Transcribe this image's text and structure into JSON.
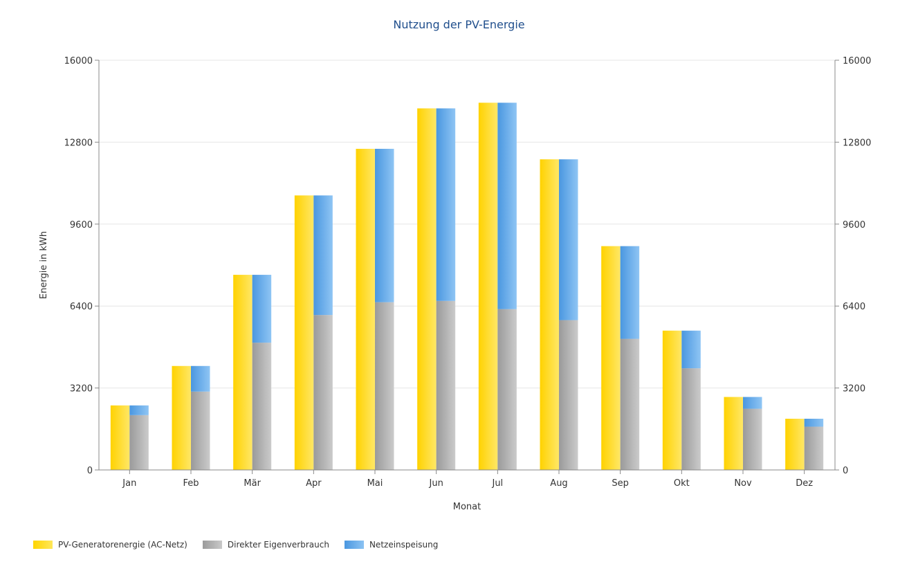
{
  "chart_data": {
    "type": "bar",
    "title": "Nutzung der PV-Energie",
    "xlabel": "Monat",
    "ylabel": "Energie in kWh",
    "ylim": [
      0,
      16000
    ],
    "yticks": [
      "0",
      "3200",
      "6400",
      "9600",
      "12800",
      "16000"
    ],
    "ytick_values": [
      0,
      3200,
      6400,
      9600,
      12800,
      16000
    ],
    "grid": true,
    "legend_position": "bottom-left",
    "categories": [
      "Jan",
      "Feb",
      "Mär",
      "Apr",
      "Mai",
      "Jun",
      "Jul",
      "Aug",
      "Sep",
      "Okt",
      "Nov",
      "Dez"
    ],
    "series": [
      {
        "name": "PV-Generatorenergie (AC-Netz)",
        "stack": "a",
        "color": "#ffd500",
        "values": [
          2520,
          4060,
          7620,
          10720,
          12540,
          14120,
          14340,
          12130,
          8740,
          5440,
          2850,
          2000
        ]
      },
      {
        "name": "Direkter Eigenverbrauch",
        "stack": "b",
        "color": "#b5b5b5",
        "values": [
          2140,
          3060,
          4970,
          6050,
          6550,
          6600,
          6280,
          5850,
          5120,
          3970,
          2390,
          1690
        ]
      },
      {
        "name": "Netzeinspeisung",
        "stack": "b",
        "color": "#6aaee8",
        "values": [
          380,
          1000,
          2650,
          4670,
          5990,
          7520,
          8060,
          6280,
          3620,
          1470,
          460,
          310
        ]
      }
    ]
  }
}
